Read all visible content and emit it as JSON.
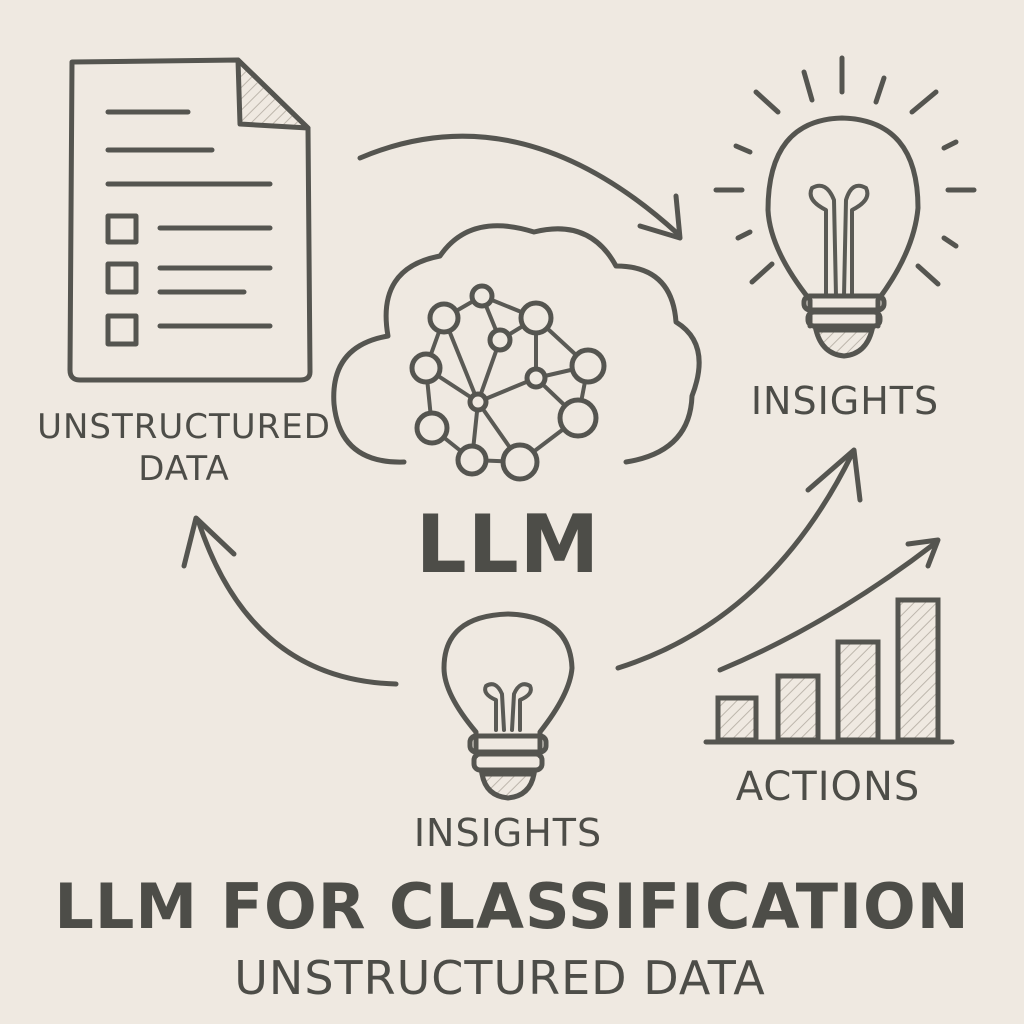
{
  "labels": {
    "unstructured_line1": "UNSTRUCTURED",
    "unstructured_line2": "DATA",
    "insights_top": "INSIGHTS",
    "llm": "LLM",
    "insights_bottom": "INSIGHTS",
    "actions": "ACTIONS"
  },
  "footer": {
    "title": "LLM FOR CLASSIFICATION",
    "subtitle": "UNSTRUCTURED DATA"
  },
  "icons": {
    "document": "document-checklist-icon",
    "cloud_network": "cloud-neural-network-icon",
    "bulb_top": "lightbulb-rays-icon",
    "bulb_bottom": "lightbulb-icon",
    "bar_chart": "bar-chart-growth-icon"
  },
  "colors": {
    "background": "#efe9e1",
    "ink": "#555550"
  }
}
